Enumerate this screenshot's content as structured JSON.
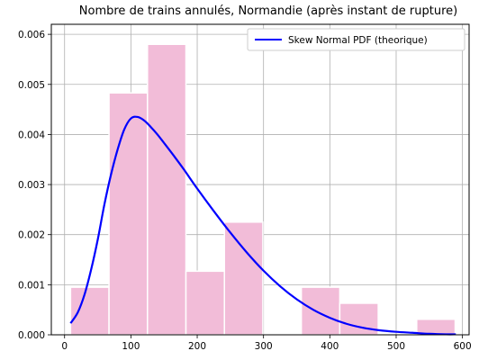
{
  "chart_data": {
    "type": "bar",
    "title": "Nombre de trains annulés, Normandie (après instant de rupture)",
    "xlabel": "",
    "ylabel": "",
    "xlim": [
      -20,
      610
    ],
    "ylim": [
      0,
      0.0062
    ],
    "grid": true,
    "legend_position": "top-right",
    "colors": {
      "hist": "#f2bcd8",
      "curve": "#0000ff",
      "grid": "#b0b0b0"
    },
    "xticks": [
      0,
      100,
      200,
      300,
      400,
      500,
      600
    ],
    "xtick_labels": [
      "0",
      "100",
      "200",
      "300",
      "400",
      "500",
      "600"
    ],
    "yticks": [
      0,
      0.001,
      0.002,
      0.003,
      0.004,
      0.005,
      0.006
    ],
    "ytick_labels": [
      "0.000",
      "0.001",
      "0.002",
      "0.003",
      "0.004",
      "0.005",
      "0.006"
    ],
    "histogram": {
      "bin_edges": [
        9,
        67,
        125,
        183,
        241,
        299,
        357,
        415,
        473,
        531,
        589
      ],
      "density": [
        0.00095,
        0.00483,
        0.0058,
        0.00127,
        0.00225,
        0.0,
        0.00095,
        0.00063,
        0.0,
        0.00031
      ]
    },
    "series": [
      {
        "name": "Skew Normal PDF (theorique)",
        "x": [
          9,
          20,
          30,
          40,
          50,
          60,
          70,
          80,
          90,
          100,
          110,
          120,
          130,
          140,
          150,
          165,
          180,
          200,
          225,
          250,
          275,
          300,
          325,
          350,
          375,
          400,
          425,
          450,
          475,
          500,
          525,
          550,
          575,
          590
        ],
        "y": [
          0.00023,
          0.00045,
          0.0008,
          0.0013,
          0.0019,
          0.0026,
          0.0032,
          0.0037,
          0.0041,
          0.00432,
          0.00435,
          0.00428,
          0.00415,
          0.004,
          0.00383,
          0.00357,
          0.0033,
          0.00292,
          0.00247,
          0.00204,
          0.00164,
          0.00128,
          0.00097,
          0.00071,
          0.0005,
          0.00034,
          0.00022,
          0.00014,
          9e-05,
          6e-05,
          4e-05,
          2e-05,
          1e-05,
          1e-05
        ]
      }
    ]
  }
}
